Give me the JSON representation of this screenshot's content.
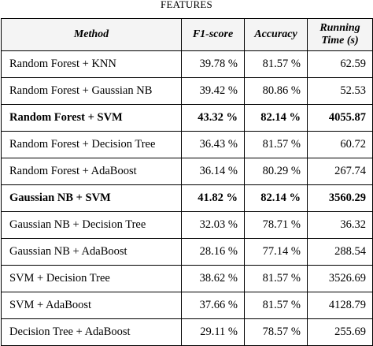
{
  "caption": "FEATURES",
  "table": {
    "headers": {
      "method": "Method",
      "f1": "F1-score",
      "accuracy": "Accuracy",
      "time_line1": "Running",
      "time_line2": "Time (s)"
    },
    "rows": [
      {
        "method": "Random Forest + KNN",
        "f1": "39.78 %",
        "accuracy": "81.57 %",
        "time": "62.59",
        "bold": false
      },
      {
        "method": "Random Forest + Gaussian NB",
        "f1": "39.42 %",
        "accuracy": "80.86 %",
        "time": "52.53",
        "bold": false
      },
      {
        "method": "Random Forest + SVM",
        "f1": "43.32 %",
        "accuracy": "82.14 %",
        "time": "4055.87",
        "bold": true
      },
      {
        "method": "Random Forest + Decision Tree",
        "f1": "36.43 %",
        "accuracy": "81.57 %",
        "time": "60.72",
        "bold": false
      },
      {
        "method": "Random Forest + AdaBoost",
        "f1": "36.14 %",
        "accuracy": "80.29 %",
        "time": "267.74",
        "bold": false
      },
      {
        "method": "Gaussian NB + SVM",
        "f1": "41.82 %",
        "accuracy": "82.14 %",
        "time": "3560.29",
        "bold": true
      },
      {
        "method": "Gaussian NB + Decision Tree",
        "f1": "32.03 %",
        "accuracy": "78.71 %",
        "time": "36.32",
        "bold": false
      },
      {
        "method": "Gaussian NB + AdaBoost",
        "f1": "28.16 %",
        "accuracy": "77.14 %",
        "time": "288.54",
        "bold": false
      },
      {
        "method": "SVM + Decision Tree",
        "f1": "38.62 %",
        "accuracy": "81.57 %",
        "time": "3526.69",
        "bold": false
      },
      {
        "method": "SVM + AdaBoost",
        "f1": "37.66 %",
        "accuracy": "81.57 %",
        "time": "4128.79",
        "bold": false
      },
      {
        "method": "Decision Tree + AdaBoost",
        "f1": "29.11 %",
        "accuracy": "78.57 %",
        "time": "255.69",
        "bold": false
      }
    ]
  }
}
